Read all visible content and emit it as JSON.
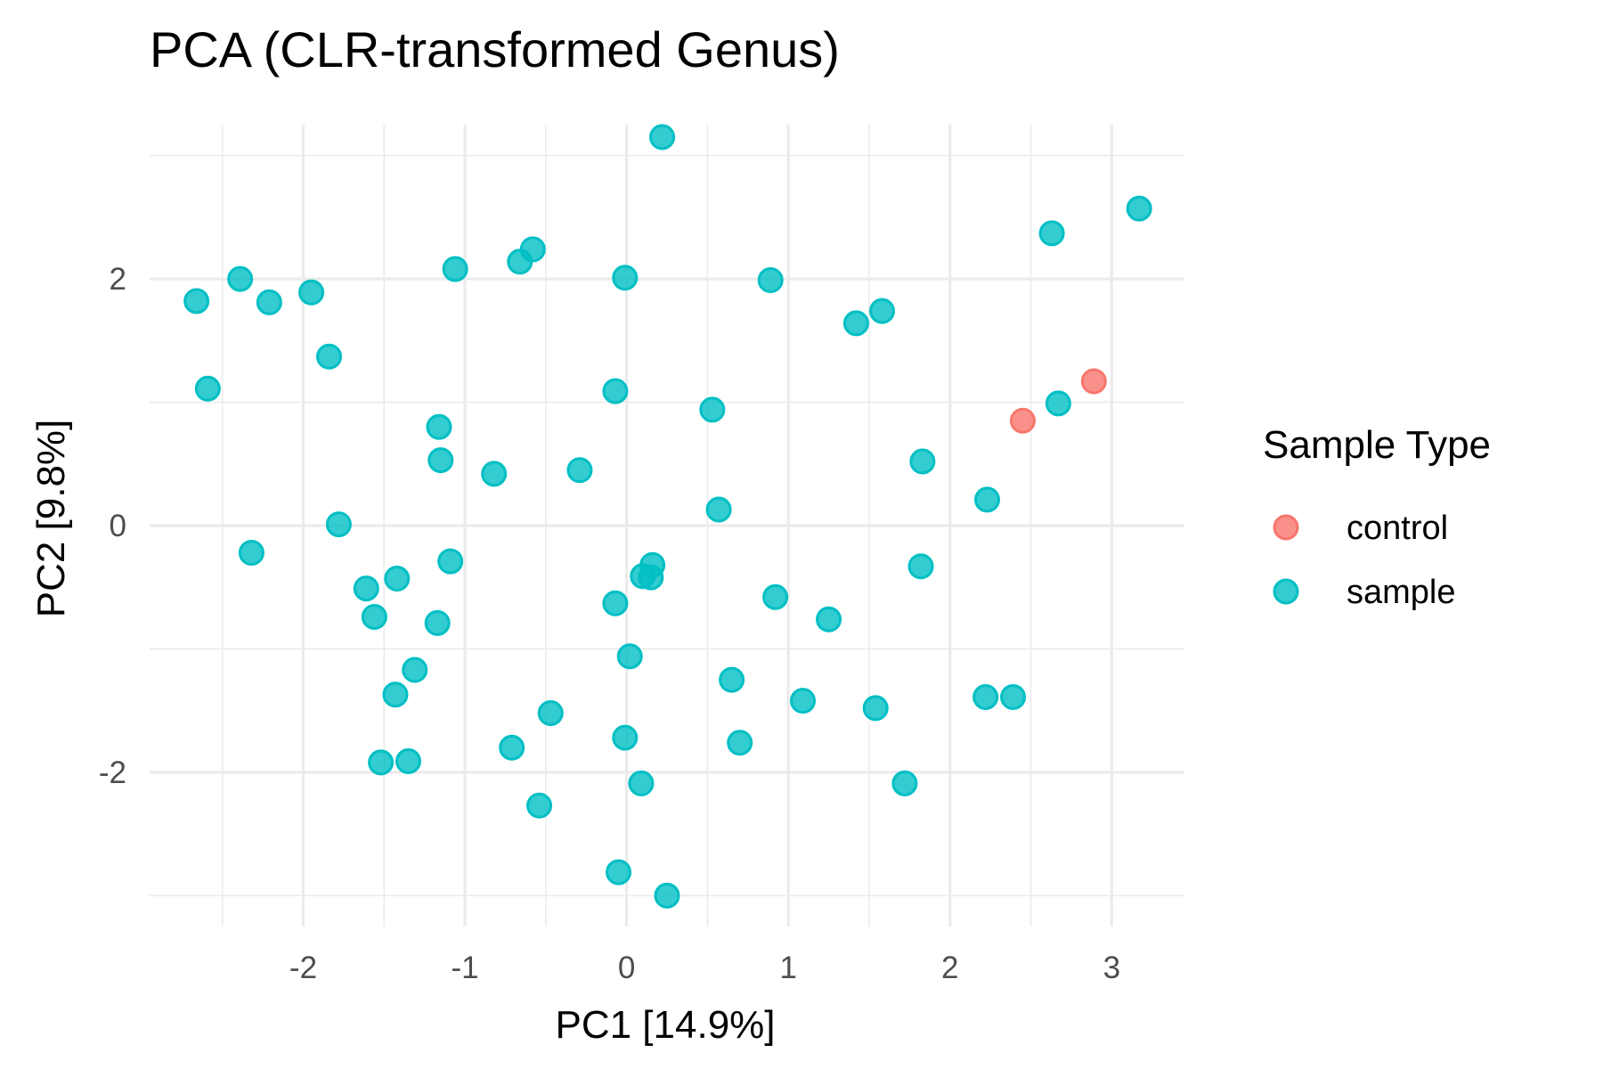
{
  "chart_data": {
    "type": "scatter",
    "title": "PCA (CLR-transformed Genus)",
    "xlabel": "PC1   [14.9%]",
    "ylabel": "PC2   [9.8%]",
    "xlim": [
      -2.95,
      3.45
    ],
    "ylim": [
      -3.25,
      3.25
    ],
    "xticks": [
      -2,
      -1,
      0,
      1,
      2,
      3
    ],
    "xtick_labels": [
      "-2",
      "-1",
      "0",
      "1",
      "2",
      "3"
    ],
    "yticks": [
      -2,
      0,
      2
    ],
    "ytick_labels": [
      "-2",
      "0",
      "2"
    ],
    "grid": true,
    "legend": {
      "title": "Sample Type",
      "position": "right",
      "entries": [
        {
          "label": "control",
          "color": "#F8766D"
        },
        {
          "label": "sample",
          "color": "#00BFC4"
        }
      ]
    },
    "series": [
      {
        "name": "control",
        "color": "#F8766D",
        "points": [
          [
            2.45,
            0.85
          ],
          [
            2.89,
            1.17
          ]
        ]
      },
      {
        "name": "sample",
        "color": "#00BFC4",
        "points": [
          [
            0.22,
            3.15
          ],
          [
            3.17,
            2.57
          ],
          [
            2.63,
            2.37
          ],
          [
            -0.58,
            2.24
          ],
          [
            -0.66,
            2.14
          ],
          [
            -1.06,
            2.08
          ],
          [
            -0.01,
            2.01
          ],
          [
            0.89,
            1.99
          ],
          [
            -2.39,
            2.0
          ],
          [
            -2.66,
            1.82
          ],
          [
            -2.21,
            1.81
          ],
          [
            -1.95,
            1.89
          ],
          [
            1.58,
            1.74
          ],
          [
            1.42,
            1.64
          ],
          [
            -1.84,
            1.37
          ],
          [
            -2.59,
            1.11
          ],
          [
            -0.07,
            1.09
          ],
          [
            2.67,
            0.99
          ],
          [
            0.53,
            0.94
          ],
          [
            -1.16,
            0.8
          ],
          [
            -1.15,
            0.53
          ],
          [
            1.83,
            0.52
          ],
          [
            -0.82,
            0.42
          ],
          [
            -0.29,
            0.45
          ],
          [
            2.23,
            0.21
          ],
          [
            0.57,
            0.13
          ],
          [
            -1.78,
            0.01
          ],
          [
            -2.32,
            -0.22
          ],
          [
            -1.09,
            -0.29
          ],
          [
            1.82,
            -0.33
          ],
          [
            0.16,
            -0.32
          ],
          [
            0.1,
            -0.41
          ],
          [
            0.15,
            -0.42
          ],
          [
            -1.42,
            -0.43
          ],
          [
            -1.61,
            -0.51
          ],
          [
            0.92,
            -0.58
          ],
          [
            -0.07,
            -0.63
          ],
          [
            -1.56,
            -0.74
          ],
          [
            1.25,
            -0.76
          ],
          [
            -1.17,
            -0.79
          ],
          [
            0.02,
            -1.06
          ],
          [
            -1.31,
            -1.17
          ],
          [
            0.65,
            -1.25
          ],
          [
            -1.43,
            -1.37
          ],
          [
            2.22,
            -1.39
          ],
          [
            2.39,
            -1.39
          ],
          [
            1.09,
            -1.42
          ],
          [
            1.54,
            -1.48
          ],
          [
            -0.47,
            -1.52
          ],
          [
            -0.01,
            -1.72
          ],
          [
            0.7,
            -1.76
          ],
          [
            -0.71,
            -1.8
          ],
          [
            -1.52,
            -1.92
          ],
          [
            -1.35,
            -1.91
          ],
          [
            0.09,
            -2.09
          ],
          [
            1.72,
            -2.09
          ],
          [
            -0.54,
            -2.27
          ],
          [
            -0.05,
            -2.81
          ],
          [
            0.25,
            -3.0
          ]
        ]
      }
    ]
  }
}
